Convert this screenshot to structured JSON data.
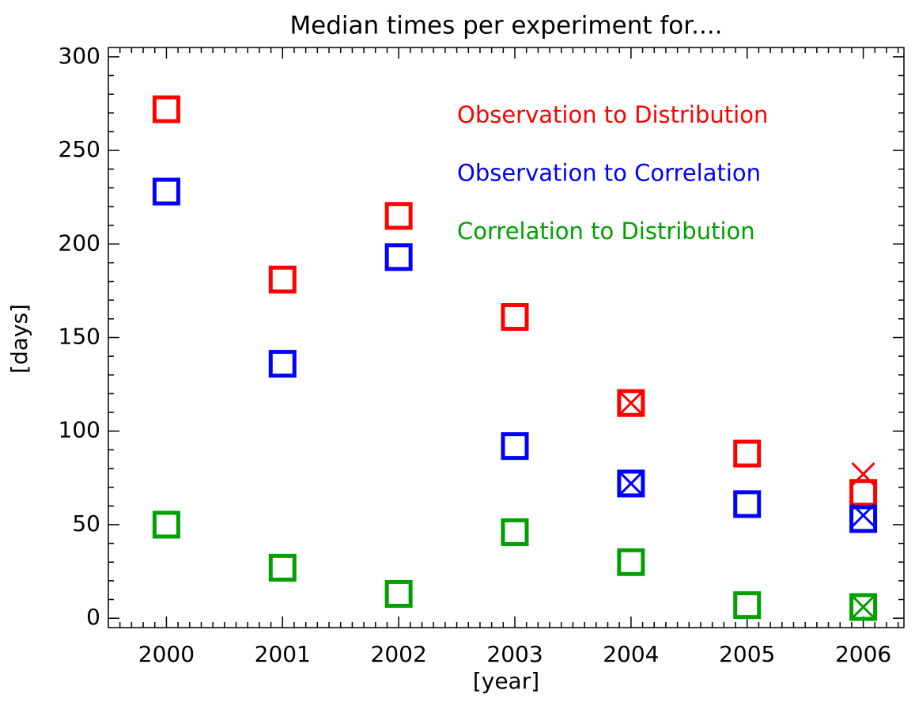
{
  "chart_data": {
    "type": "scatter",
    "title": "Median times per experiment for....",
    "xlabel": "[year]",
    "ylabel": "[days]",
    "x": [
      2000,
      2001,
      2002,
      2003,
      2004,
      2005,
      2006
    ],
    "series": [
      {
        "name": "Observation to Distribution",
        "color": "#ff0000",
        "values": [
          272,
          181,
          215,
          161,
          115,
          88,
          67
        ],
        "cross_values": [
          null,
          null,
          null,
          null,
          115,
          null,
          77
        ]
      },
      {
        "name": "Observation to Correlation",
        "color": "#0000ff",
        "values": [
          228,
          136,
          193,
          92,
          72,
          61,
          53
        ],
        "cross_values": [
          null,
          null,
          null,
          null,
          72,
          null,
          55
        ]
      },
      {
        "name": "Correlation to Distribution",
        "color": "#00a000",
        "values": [
          50,
          27,
          13,
          46,
          30,
          7,
          6
        ],
        "cross_values": [
          null,
          null,
          null,
          null,
          null,
          null,
          6
        ]
      }
    ],
    "xlim": [
      1999.5,
      2006.35
    ],
    "ylim": [
      -5,
      305
    ],
    "xticks": [
      2000,
      2001,
      2002,
      2003,
      2004,
      2005,
      2006
    ],
    "yticks": [
      0,
      50,
      100,
      150,
      200,
      250,
      300
    ],
    "xminorticks": [
      1999.6,
      1999.7,
      1999.8,
      1999.9,
      2000.1,
      2000.2,
      2000.3,
      2000.4,
      2000.5,
      2000.6,
      2000.7,
      2000.8,
      2000.9,
      2001.1,
      2001.2,
      2001.3,
      2001.4,
      2001.5,
      2001.6,
      2001.7,
      2001.8,
      2001.9,
      2002.1,
      2002.2,
      2002.3,
      2002.4,
      2002.5,
      2002.6,
      2002.7,
      2002.8,
      2002.9,
      2003.1,
      2003.2,
      2003.3,
      2003.4,
      2003.5,
      2003.6,
      2003.7,
      2003.8,
      2003.9,
      2004.1,
      2004.2,
      2004.3,
      2004.4,
      2004.5,
      2004.6,
      2004.7,
      2004.8,
      2004.9,
      2005.1,
      2005.2,
      2005.3,
      2005.4,
      2005.5,
      2005.6,
      2005.7,
      2005.8,
      2005.9,
      2006.1,
      2006.2,
      2006.3
    ],
    "yminorticks": [
      10,
      20,
      30,
      40,
      60,
      70,
      80,
      90,
      110,
      120,
      130,
      140,
      160,
      170,
      180,
      190,
      210,
      220,
      230,
      240,
      260,
      270,
      280,
      290
    ],
    "legend": "upper right"
  }
}
